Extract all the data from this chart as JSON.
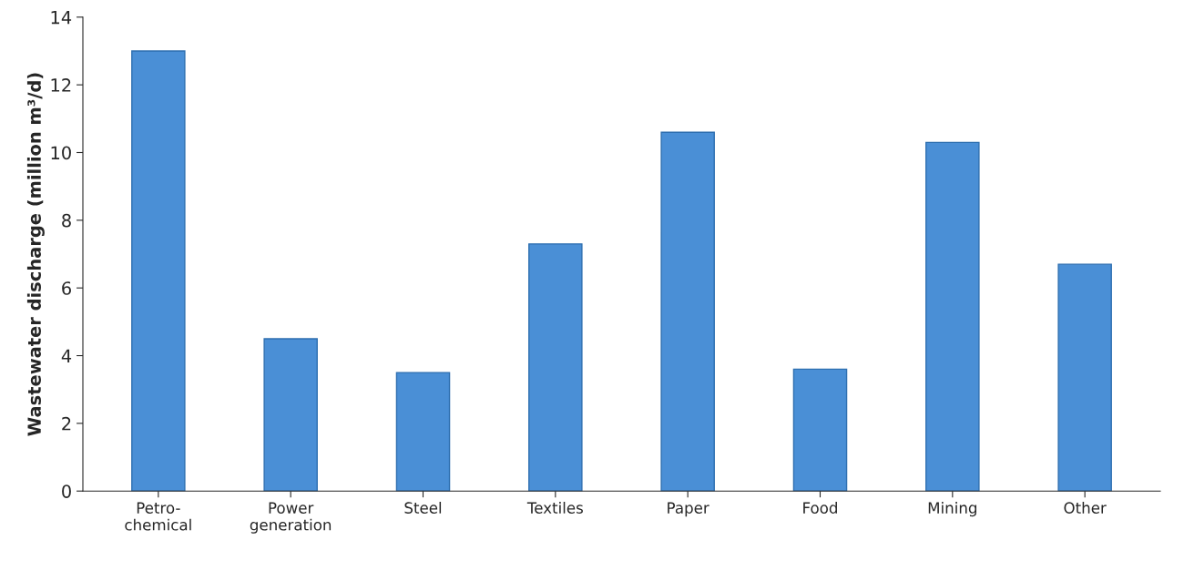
{
  "chart_data": {
    "type": "bar",
    "ylabel": "Wastewater discharge (million m³/d)",
    "categories": [
      "Petro-\nchemical",
      "Power\ngeneration",
      "Steel",
      "Textiles",
      "Paper",
      "Food",
      "Mining",
      "Other"
    ],
    "values": [
      13,
      4.5,
      3.5,
      7.3,
      10.6,
      3.6,
      10.3,
      6.7
    ],
    "color": "#4a8fd6",
    "ylim": [
      0,
      14
    ],
    "yticks": [
      0,
      2,
      4,
      6,
      8,
      10,
      12,
      14
    ],
    "grid": false
  }
}
